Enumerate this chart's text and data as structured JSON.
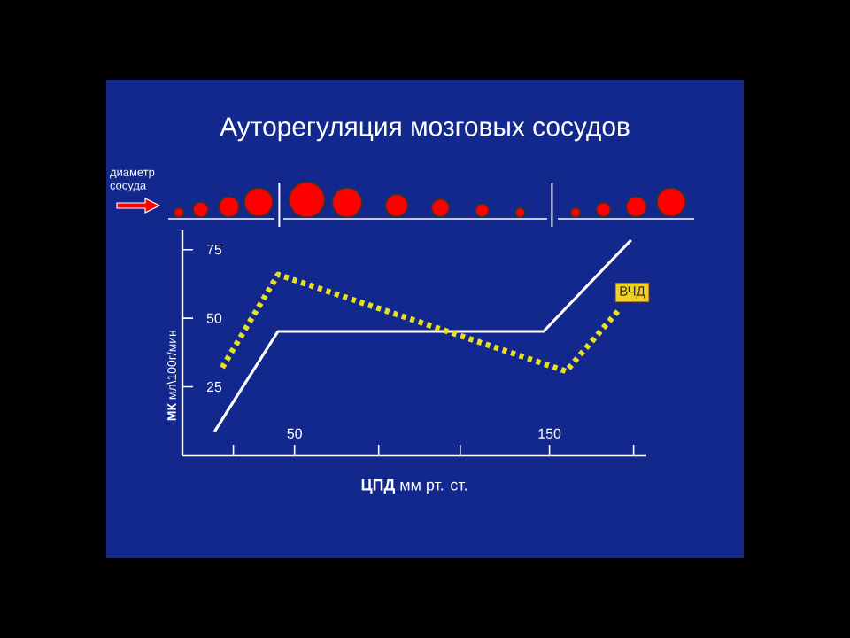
{
  "chart_data": {
    "type": "line",
    "title": "Ауторегуляция мозговых сосудов",
    "xlabel": "**ЦПД** мм рт. ст.",
    "ylabel": "**МК** мл\\100г/мин",
    "xlim": [
      6,
      188
    ],
    "ylim": [
      0,
      82
    ],
    "xticks": [
      {
        "value": 26,
        "label": null
      },
      50,
      {
        "value": 83,
        "label": null
      },
      {
        "value": 115,
        "label": null
      },
      150,
      {
        "value": 183,
        "label": null
      }
    ],
    "yticks": [
      25,
      50,
      75
    ],
    "series": [
      {
        "color": "#ffffff",
        "line_style": "solid",
        "x": [
          18.6,
          43.5,
          147.7,
          182
        ],
        "values": [
          8.7,
          45.2,
          45.2,
          78.5
        ]
      },
      {
        "color": "#e8e020",
        "line_style": "dotted",
        "x": [
          21.6,
          43.5,
          156.5,
          177.5
        ],
        "values": [
          32,
          65.9,
          30.7,
          53.3
        ]
      }
    ],
    "annotations": [
      "диаметр сосуда",
      "ВЧД"
    ],
    "marker": "none"
  }
}
